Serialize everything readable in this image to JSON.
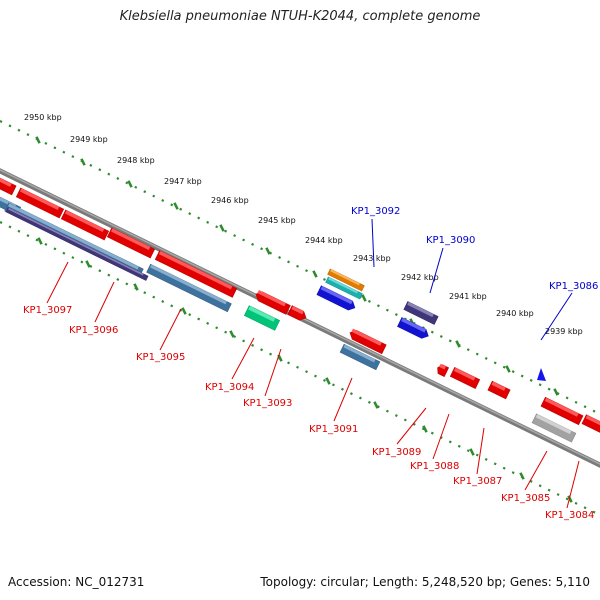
{
  "title": "Klebsiella pneumoniae NTUH-K2044, complete genome",
  "footer": {
    "accession": "Accession: NC_012731",
    "topology": "Topology: circular; Length: 5,248,520 bp; Genes: 5,110"
  },
  "colors": {
    "backbone": "#7a7a7a",
    "ticks": "#2e8b2e",
    "gene_red": "#ff0000",
    "gene_blue": "#1515ee",
    "gene_steel": "#4682b4",
    "gene_slate": "#483d8b",
    "gene_green": "#00e08a",
    "gene_orange": "#ff8c00",
    "gene_cyan": "#20c8c8",
    "gene_gray": "#b8b8b8",
    "label_forward": "#0000cc",
    "label_reverse": "#dd0000"
  },
  "scale_labels": [
    "2950 kbp",
    "2949 kbp",
    "2948 kbp",
    "2947 kbp",
    "2946 kbp",
    "2945 kbp",
    "2944 kbp",
    "2943 kbp",
    "2942 kbp",
    "2941 kbp",
    "2940 kbp",
    "2939 kbp"
  ],
  "gene_labels": [
    {
      "id": "KP1_3097",
      "strand": "reverse"
    },
    {
      "id": "KP1_3096",
      "strand": "reverse"
    },
    {
      "id": "KP1_3095",
      "strand": "reverse"
    },
    {
      "id": "KP1_3094",
      "strand": "reverse"
    },
    {
      "id": "KP1_3093",
      "strand": "reverse"
    },
    {
      "id": "KP1_3092",
      "strand": "forward"
    },
    {
      "id": "KP1_3091",
      "strand": "reverse"
    },
    {
      "id": "KP1_3090",
      "strand": "forward"
    },
    {
      "id": "KP1_3089",
      "strand": "reverse"
    },
    {
      "id": "KP1_3088",
      "strand": "reverse"
    },
    {
      "id": "KP1_3087",
      "strand": "reverse"
    },
    {
      "id": "KP1_3086",
      "strand": "forward"
    },
    {
      "id": "KP1_3085",
      "strand": "reverse"
    },
    {
      "id": "KP1_3084",
      "strand": "reverse"
    }
  ]
}
